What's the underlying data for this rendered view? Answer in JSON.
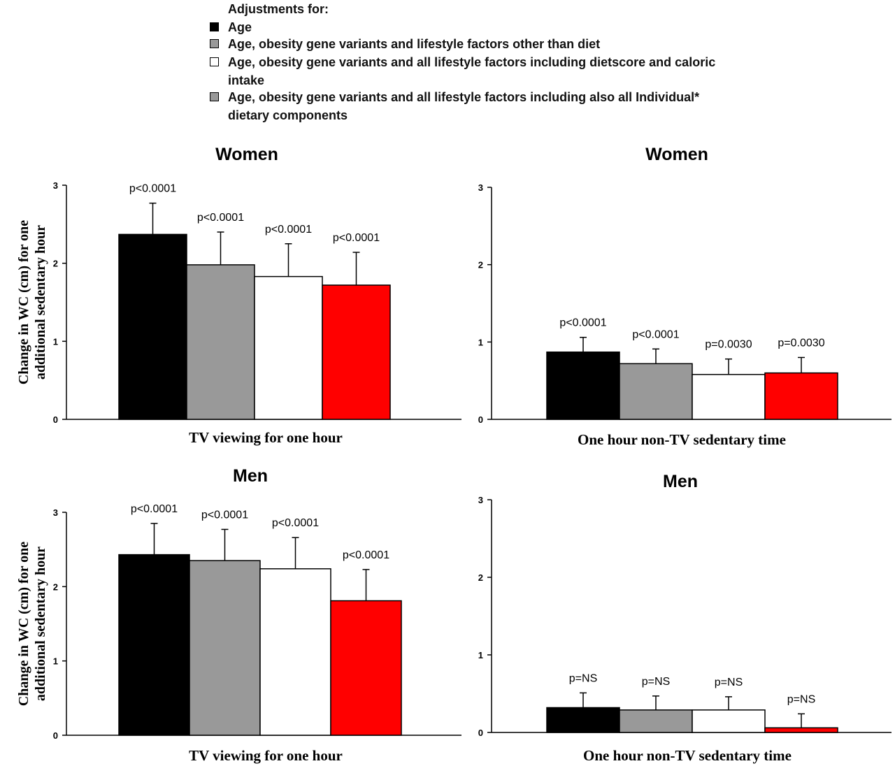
{
  "legend": {
    "title": "Adjustments for:",
    "items": [
      {
        "label": "Age",
        "color": "#000000"
      },
      {
        "label": "Age, obesity gene variants and lifestyle factors other than diet",
        "color": "#999999"
      },
      {
        "label": "Age, obesity gene variants and all lifestyle factors including dietscore and caloric intake",
        "color": "#ffffff"
      },
      {
        "label": "Age, obesity gene variants and all lifestyle factors including also all Individual* dietary components",
        "color": "#999999"
      }
    ]
  },
  "chart_data": [
    {
      "type": "bar",
      "title": "Women",
      "xlabel": "TV viewing for one hour",
      "ylabel": "Change in WC (cm) for one additional sedentary hour",
      "ylim": [
        0,
        3
      ],
      "yticks": [
        "0",
        "1",
        "2",
        "3"
      ],
      "bars": [
        {
          "value": 2.37,
          "error": 0.4,
          "color": "#000000",
          "p_label": "p<0.0001"
        },
        {
          "value": 1.98,
          "error": 0.42,
          "color": "#999999",
          "p_label": "p<0.0001"
        },
        {
          "value": 1.83,
          "error": 0.42,
          "color": "#ffffff",
          "p_label": "p<0.0001"
        },
        {
          "value": 1.72,
          "error": 0.42,
          "color": "#ff0000",
          "p_label": "p<0.0001"
        }
      ]
    },
    {
      "type": "bar",
      "title": "Women",
      "xlabel": "One hour non-TV sedentary time",
      "ylabel": "",
      "ylim": [
        0,
        3
      ],
      "yticks": [
        "0",
        "1",
        "2",
        "3"
      ],
      "bars": [
        {
          "value": 0.87,
          "error": 0.19,
          "color": "#000000",
          "p_label": "p<0.0001"
        },
        {
          "value": 0.72,
          "error": 0.19,
          "color": "#999999",
          "p_label": "p<0.0001"
        },
        {
          "value": 0.58,
          "error": 0.2,
          "color": "#ffffff",
          "p_label": "p=0.0030"
        },
        {
          "value": 0.6,
          "error": 0.2,
          "color": "#ff0000",
          "p_label": "p=0.0030"
        }
      ]
    },
    {
      "type": "bar",
      "title": "Men",
      "xlabel": "TV viewing for one hour",
      "ylabel": "Change in WC (cm) for one additional sedentary hour",
      "ylim": [
        0,
        3
      ],
      "yticks": [
        "0",
        "1",
        "2",
        "3"
      ],
      "bars": [
        {
          "value": 2.43,
          "error": 0.42,
          "color": "#000000",
          "p_label": "p<0.0001"
        },
        {
          "value": 2.35,
          "error": 0.42,
          "color": "#999999",
          "p_label": "p<0.0001"
        },
        {
          "value": 2.24,
          "error": 0.42,
          "color": "#ffffff",
          "p_label": "p<0.0001"
        },
        {
          "value": 1.81,
          "error": 0.42,
          "color": "#ff0000",
          "p_label": "p<0.0001"
        }
      ]
    },
    {
      "type": "bar",
      "title": "Men",
      "xlabel": "One hour non-TV sedentary time",
      "ylabel": "",
      "ylim": [
        0,
        3
      ],
      "yticks": [
        "0",
        "1",
        "2",
        "3"
      ],
      "bars": [
        {
          "value": 0.32,
          "error": 0.19,
          "color": "#000000",
          "p_label": "p=NS"
        },
        {
          "value": 0.29,
          "error": 0.18,
          "color": "#999999",
          "p_label": "p=NS"
        },
        {
          "value": 0.29,
          "error": 0.17,
          "color": "#ffffff",
          "p_label": "p=NS"
        },
        {
          "value": 0.06,
          "error": 0.18,
          "color": "#ff0000",
          "p_label": "p=NS"
        }
      ]
    }
  ]
}
